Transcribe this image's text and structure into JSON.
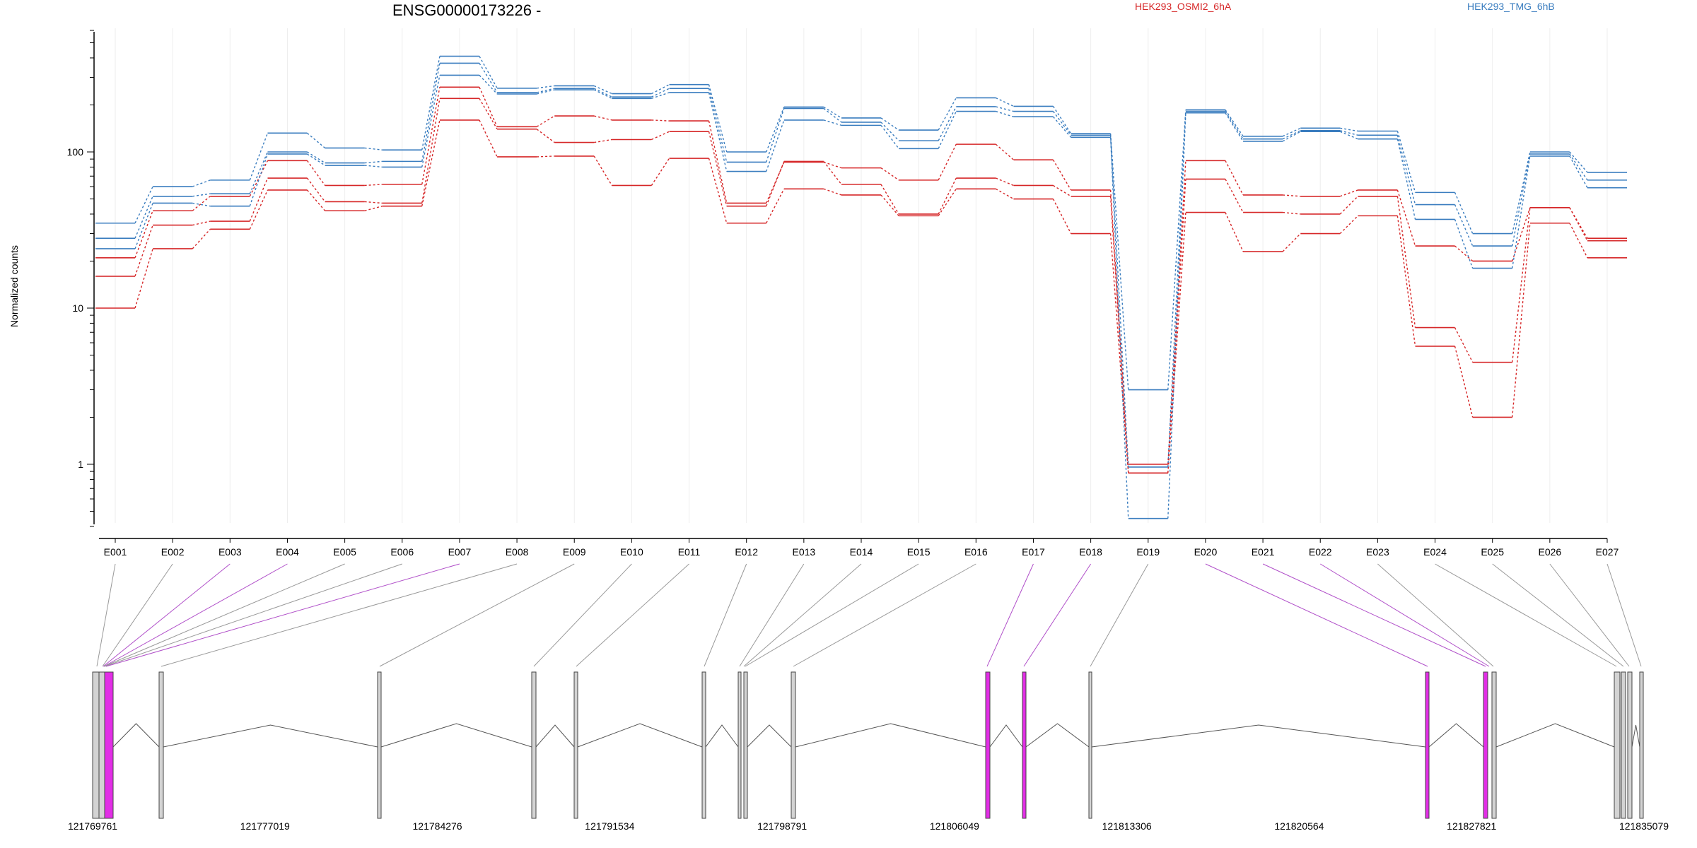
{
  "chart_data": {
    "type": "line",
    "title": "ENSG00000173226 -",
    "ylabel": "Normalized counts",
    "y_scale": "log",
    "ylim": [
      0.4,
      600
    ],
    "yticks": [
      "1",
      "10",
      "100"
    ],
    "grid": "vertical lines at exon positions",
    "legend": {
      "placement": "top-right"
    },
    "x_categories": [
      "E001",
      "E002",
      "E003",
      "E004",
      "E005",
      "E006",
      "E007",
      "E008",
      "E009",
      "E010",
      "E011",
      "E012",
      "E013",
      "E014",
      "E015",
      "E016",
      "E017",
      "E018",
      "E019",
      "E020",
      "E021",
      "E022",
      "E023",
      "E024",
      "E025",
      "E026",
      "E027"
    ],
    "series": [
      {
        "group": "HEK293_OSMI2_6hA",
        "color": "#d62728",
        "values": [
          21,
          42,
          52,
          88,
          61,
          62,
          260,
          145,
          170,
          160,
          158,
          47,
          86,
          79,
          66,
          112,
          89,
          57,
          1.0,
          88,
          53,
          52,
          57,
          25,
          20,
          44,
          28
        ]
      },
      {
        "group": "HEK293_OSMI2_6hA",
        "color": "#d62728",
        "values": [
          16,
          34,
          36,
          68,
          48,
          47,
          220,
          140,
          115,
          120,
          135,
          45,
          87,
          62,
          40,
          68,
          61,
          52,
          0.88,
          67,
          41,
          40,
          52,
          7.5,
          4.5,
          44,
          27
        ]
      },
      {
        "group": "HEK293_OSMI2_6hA",
        "color": "#d62728",
        "values": [
          10,
          24,
          32,
          57,
          42,
          45,
          160,
          93,
          94,
          61,
          91,
          35,
          58,
          53,
          39,
          58,
          50,
          30,
          0.88,
          41,
          23,
          30,
          39,
          5.7,
          2.0,
          35,
          21
        ]
      },
      {
        "group": "HEK293_TMG_6hB",
        "color": "#3a7dbf",
        "values": [
          35,
          60,
          66,
          132,
          106,
          103,
          410,
          256,
          265,
          236,
          270,
          100,
          194,
          165,
          138,
          222,
          196,
          131,
          3.0,
          186,
          126,
          142,
          136,
          55,
          30,
          100,
          74
        ]
      },
      {
        "group": "HEK293_TMG_6hB",
        "color": "#3a7dbf",
        "values": [
          28,
          52,
          54,
          100,
          85,
          87,
          370,
          240,
          255,
          225,
          255,
          86,
          190,
          155,
          118,
          195,
          182,
          128,
          0.96,
          182,
          121,
          137,
          128,
          46,
          25,
          97,
          66
        ]
      },
      {
        "group": "HEK293_TMG_6hB",
        "color": "#3a7dbf",
        "values": [
          24,
          47,
          45,
          97,
          82,
          80,
          310,
          235,
          250,
          220,
          240,
          75,
          160,
          148,
          105,
          182,
          168,
          124,
          0.45,
          178,
          117,
          135,
          121,
          37,
          18,
          94,
          59
        ]
      }
    ],
    "exon_connector_colors": [
      "#999999",
      "#999999",
      "#b04fc9",
      "#b04fc9",
      "#999999",
      "#999999",
      "#b04fc9",
      "#999999",
      "#999999",
      "#999999",
      "#999999",
      "#999999",
      "#999999",
      "#999999",
      "#999999",
      "#999999",
      "#b04fc9",
      "#b04fc9",
      "#999999",
      "#b04fc9",
      "#b04fc9",
      "#b04fc9",
      "#999999",
      "#999999",
      "#999999",
      "#999999",
      "#999999"
    ],
    "genomic_axis": {
      "range": [
        121769761,
        121835079
      ],
      "tick_labels": [
        "121769761",
        "121777019",
        "121784276",
        "121791534",
        "121798791",
        "121806049",
        "121813306",
        "121820564",
        "121827821",
        "121835079"
      ]
    }
  },
  "legend": {
    "osmi": {
      "label": "HEK293_OSMI2_6hA",
      "color": "#d62728"
    },
    "tmg": {
      "label": "HEK293_TMG_6hB",
      "color": "#3a7dbf"
    }
  },
  "colors": {
    "highlight_exon": "#e22ee6",
    "exon_fill": "#d3d3d3",
    "connector_gray": "#999999",
    "connector_purple": "#b04fc9"
  }
}
